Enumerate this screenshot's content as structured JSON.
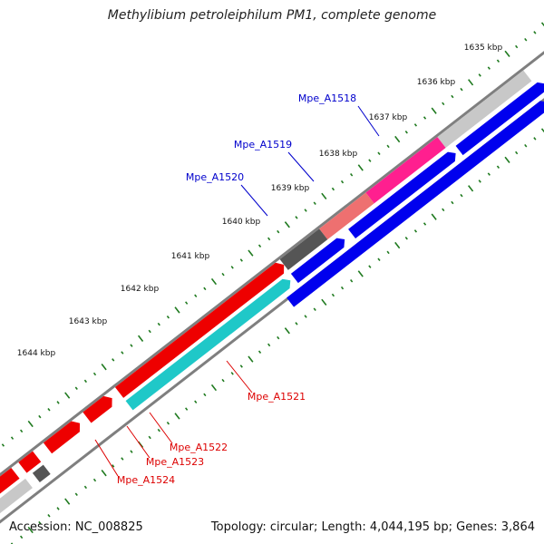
{
  "title": "Methylibium petroleiphilum PM1, complete genome",
  "accession": "Accession: NC_008825",
  "topology": "Topology: circular; Length: 4,044,195 bp; Genes: 3,864",
  "colors": {
    "tick": "#1f7a1f",
    "backbone": "#7f7f7f",
    "forward_label": "#0000cc",
    "reverse_label": "#dd0000",
    "blue_track": "#0000ee",
    "red_track": "#ee0000",
    "cyan_track": "#1fc8c8",
    "light_gray_track": "#c8c8c8",
    "dark_gray_track": "#555555",
    "pink_track": "#ff1f8f",
    "salmon_track": "#ee7070"
  },
  "ticks": [
    {
      "label": "1635 kbp"
    },
    {
      "label": "1636 kbp"
    },
    {
      "label": "1637 kbp"
    },
    {
      "label": "1638 kbp"
    },
    {
      "label": "1639 kbp"
    },
    {
      "label": "1640 kbp"
    },
    {
      "label": "1641 kbp"
    },
    {
      "label": "1642 kbp"
    },
    {
      "label": "1643 kbp"
    },
    {
      "label": "1644 kbp"
    }
  ],
  "genes": [
    {
      "name": "Mpe_A1518",
      "strand": "forward"
    },
    {
      "name": "Mpe_A1519",
      "strand": "forward"
    },
    {
      "name": "Mpe_A1520",
      "strand": "forward"
    },
    {
      "name": "Mpe_A1521",
      "strand": "reverse"
    },
    {
      "name": "Mpe_A1522",
      "strand": "reverse"
    },
    {
      "name": "Mpe_A1523",
      "strand": "reverse"
    },
    {
      "name": "Mpe_A1524",
      "strand": "reverse"
    }
  ]
}
